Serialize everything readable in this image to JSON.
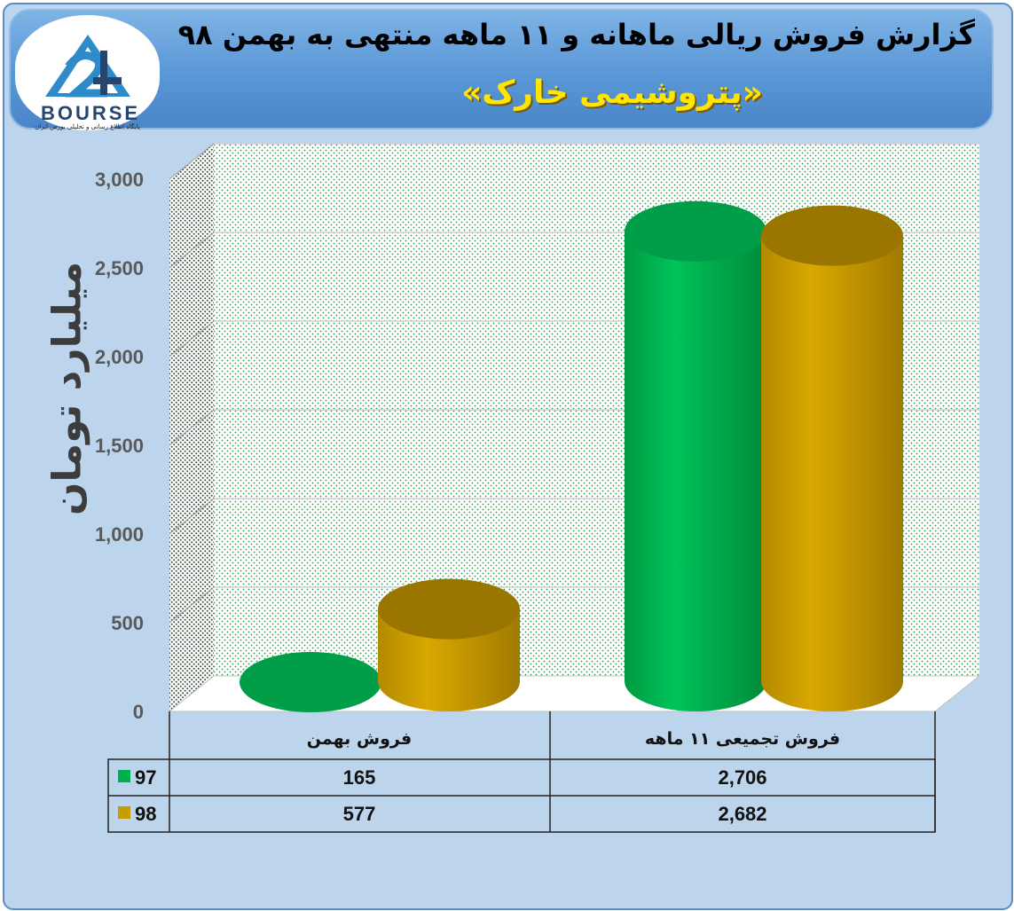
{
  "header": {
    "title": "گزارش فروش ریالی ماهانه و ۱۱ ماهه منتهی به بهمن ۹۸",
    "subtitle": "«پتروشیمی خارک»"
  },
  "logo": {
    "text": "BOURSE",
    "tagline": "پایگاه اطلاع رسانی و تحلیلی بورس ایران"
  },
  "colors": {
    "series_97": "#00b050",
    "series_98": "#c89b00",
    "frame": "#bdd5ec",
    "banner": "#5a97d6",
    "subtitle": "#ffe600"
  },
  "chart_data": {
    "type": "bar",
    "style": "3d-cylinder",
    "title": "گزارش فروش ریالی ماهانه و ۱۱ ماهه منتهی به بهمن ۹۸",
    "subtitle": "«پتروشیمی خارک»",
    "ylabel": "میلیارد تومان",
    "xlabel": "",
    "categories": [
      "فروش بهمن",
      "فروش تجمیعی ۱۱ ماهه"
    ],
    "series": [
      {
        "name": "97",
        "values": [
          165,
          2706
        ],
        "color": "#00b050"
      },
      {
        "name": "98",
        "values": [
          577,
          2682
        ],
        "color": "#c89b00"
      }
    ],
    "value_labels": [
      [
        "165",
        "2,706"
      ],
      [
        "577",
        "2,682"
      ]
    ],
    "ylim": [
      0,
      3000
    ],
    "yticks": [
      0,
      500,
      1000,
      1500,
      2000,
      2500,
      3000
    ],
    "ytick_labels": [
      "0",
      "500",
      "1,000",
      "1,500",
      "2,000",
      "2,500",
      "3,000"
    ],
    "grid": true,
    "legend": "data-table-below"
  }
}
